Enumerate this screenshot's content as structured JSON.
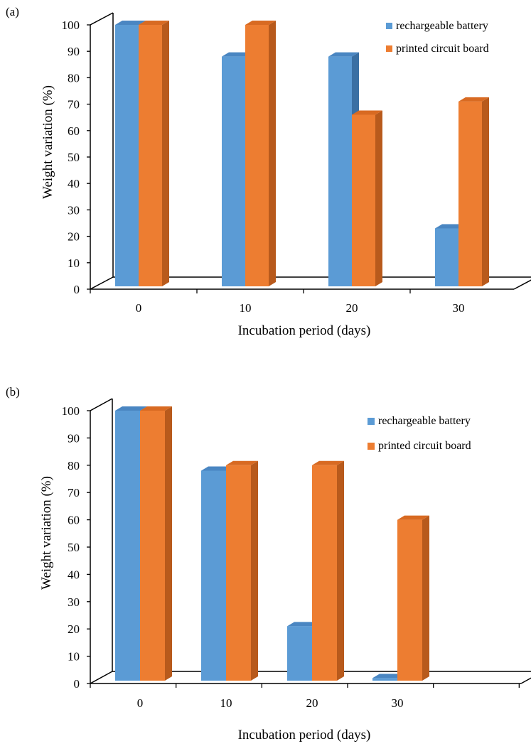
{
  "colors": {
    "battery": "#5B9BD5",
    "battery_top": "#4A86C2",
    "battery_side": "#3A6FA3",
    "pcb": "#ED7D31",
    "pcb_top": "#D86A22",
    "pcb_side": "#B85A1C",
    "frame": "#000000"
  },
  "chart_data": [
    {
      "panel_label": "(a)",
      "type": "bar",
      "categories": [
        "0",
        "10",
        "20",
        "30"
      ],
      "series": [
        {
          "name": "rechargeable battery",
          "values": [
            100,
            88,
            88,
            23
          ]
        },
        {
          "name": "printed circuit board",
          "values": [
            100,
            100,
            66,
            71
          ]
        }
      ],
      "xlabel": "Incubation period (days)",
      "ylabel": "Weight variation (%)",
      "ylim": [
        0,
        100
      ],
      "yticks": [
        "0",
        "10",
        "20",
        "30",
        "40",
        "50",
        "60",
        "70",
        "80",
        "90",
        "100"
      ],
      "legend": "top-right",
      "grid": false
    },
    {
      "panel_label": "(b)",
      "type": "bar",
      "categories": [
        "0",
        "10",
        "20",
        "30"
      ],
      "series": [
        {
          "name": "rechargeable battery",
          "values": [
            100,
            78,
            21,
            2
          ]
        },
        {
          "name": "printed circuit board",
          "values": [
            100,
            80,
            80,
            60
          ]
        }
      ],
      "xlabel": "Incubation period (days)",
      "ylabel": "Weight variation (%)",
      "ylim": [
        0,
        100
      ],
      "yticks": [
        "0",
        "10",
        "20",
        "30",
        "40",
        "50",
        "60",
        "70",
        "80",
        "90",
        "100"
      ],
      "legend": "top-right",
      "grid": false
    }
  ]
}
